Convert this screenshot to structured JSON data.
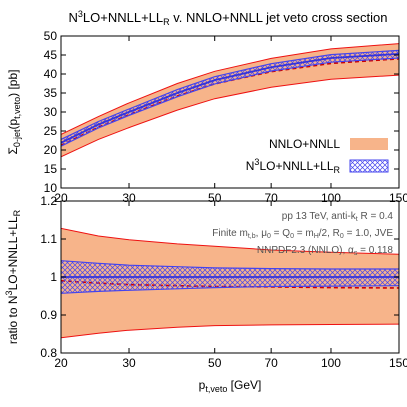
{
  "chart_data": [
    {
      "type": "line",
      "panel": "top",
      "title_parts": {
        "prefix": "N",
        "sup": "3",
        "rest": "LO+NNLL+LL",
        "sub": "R",
        "suffix": " v. NNLO+NNLL jet veto cross section"
      },
      "ylabel_parts": {
        "main": "Σ",
        "sub": "0-jet",
        "paren_open": "(p",
        "sub2": "t,veto",
        "paren_close": ") [pb]"
      },
      "log_x": true,
      "xlim": [
        20,
        150
      ],
      "ylim": [
        10,
        50
      ],
      "x_ticks": [
        20,
        30,
        50,
        70,
        100,
        150
      ],
      "x_tick_labels": [
        "20",
        "30",
        "50",
        "70",
        "100",
        "150"
      ],
      "y_ticks": [
        10,
        15,
        20,
        25,
        30,
        35,
        40,
        45,
        50
      ],
      "y_tick_labels": [
        "10",
        "15",
        "20",
        "25",
        "30",
        "35",
        "40",
        "45",
        "50"
      ],
      "x": [
        20,
        25,
        30,
        40,
        50,
        70,
        100,
        150
      ],
      "series": [
        {
          "name": "NNLO+NNLL",
          "color": "#f7b48a",
          "edge_color": "#ee1111",
          "central": [
            21.2,
            26.0,
            29.3,
            34.2,
            37.4,
            40.6,
            42.8,
            44.0
          ],
          "lower": [
            18.2,
            22.8,
            25.9,
            30.5,
            33.5,
            36.5,
            38.6,
            39.7
          ],
          "upper": [
            24.1,
            28.8,
            32.4,
            37.5,
            40.7,
            44.1,
            46.6,
            48.0
          ]
        },
        {
          "name_parts": {
            "prefix": "N",
            "sup": "3",
            "rest": "LO+NNLL+LL",
            "sub": "R"
          },
          "color": "#4444ee",
          "hatch": "crosshatch",
          "central": [
            21.9,
            26.7,
            30.0,
            35.0,
            38.4,
            41.8,
            44.2,
            45.3
          ],
          "lower": [
            21.0,
            25.8,
            29.1,
            34.0,
            37.4,
            40.8,
            43.1,
            44.2
          ],
          "upper": [
            22.8,
            27.5,
            30.8,
            35.9,
            39.3,
            42.7,
            45.1,
            46.2
          ]
        }
      ],
      "legend_position": "bottom-right"
    },
    {
      "type": "line",
      "panel": "bottom",
      "ylabel_parts": {
        "prefix": "ratio to N",
        "sup": "3",
        "rest": "LO+NNLL+LL",
        "sub": "R"
      },
      "xlabel_parts": {
        "main": "p",
        "sub": "t,veto",
        "rest": " [GeV]"
      },
      "log_x": true,
      "xlim": [
        20,
        150
      ],
      "ylim": [
        0.8,
        1.2
      ],
      "x_ticks": [
        20,
        30,
        50,
        70,
        100,
        150
      ],
      "x_tick_labels": [
        "20",
        "30",
        "50",
        "70",
        "100",
        "150"
      ],
      "y_ticks": [
        0.8,
        0.9,
        1.0,
        1.1,
        1.2
      ],
      "y_tick_labels": [
        "0.8",
        "0.9",
        "1",
        "1.1",
        "1.2"
      ],
      "x": [
        20,
        25,
        30,
        40,
        50,
        70,
        100,
        150
      ],
      "series": [
        {
          "name": "NNLO+NNLL",
          "color": "#f7b48a",
          "edge_color": "#ee1111",
          "central": [
            0.99,
            0.984,
            0.98,
            0.977,
            0.975,
            0.974,
            0.972,
            0.971
          ],
          "lower": [
            0.84,
            0.852,
            0.86,
            0.868,
            0.872,
            0.874,
            0.875,
            0.876
          ],
          "upper": [
            1.128,
            1.108,
            1.098,
            1.087,
            1.081,
            1.071,
            1.065,
            1.06
          ]
        },
        {
          "name_parts": {
            "prefix": "N",
            "sup": "3",
            "rest": "LO+NNLL+LL",
            "sub": "R"
          },
          "color": "#4444ee",
          "hatch": "crosshatch",
          "central": [
            1.0,
            1.0,
            1.0,
            1.0,
            1.0,
            1.0,
            1.0,
            1.0
          ],
          "lower": [
            0.957,
            0.962,
            0.965,
            0.969,
            0.972,
            0.975,
            0.976,
            0.977
          ],
          "upper": [
            1.043,
            1.036,
            1.031,
            1.027,
            1.024,
            1.022,
            1.021,
            1.021
          ]
        }
      ],
      "annotations": [
        {
          "kind": "energy",
          "parts": {
            "main": "pp 13 TeV, anti-k",
            "sub": "t",
            "rest": " R = 0.4"
          }
        },
        {
          "kind": "scales",
          "parts": {
            "t1": "Finite m",
            "s1": "t,b",
            "t2": ", μ",
            "s2": "0",
            "t3": " = Q",
            "s3": "0",
            "t4": " = m",
            "s4": "H",
            "t5": "/2, R",
            "s5": "0",
            "t6": " = 1.0, JVE"
          }
        },
        {
          "kind": "pdf",
          "parts": {
            "main": "NNPDF2.3 (NNLO), α",
            "sub": "s",
            "rest": " = 0.118"
          }
        }
      ]
    }
  ]
}
